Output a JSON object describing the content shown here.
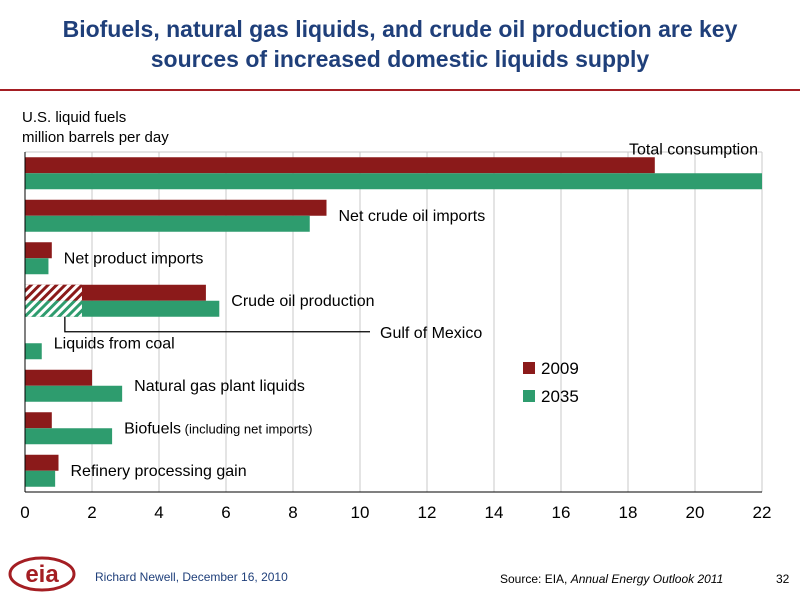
{
  "slide": {
    "title_line1": "Biofuels, natural gas liquids, and crude oil production are key",
    "title_line2": "sources of increased domestic liquids supply",
    "ylabel_line1": "U.S. liquid fuels",
    "ylabel_line2": "million barrels per day",
    "author": "Richard Newell, December 16, 2010",
    "source_prefix": "Source:  EIA, ",
    "source_title": "Annual Energy Outlook 2011",
    "page_number": "32",
    "logo_text": "eia"
  },
  "chart_data": {
    "type": "bar",
    "orientation": "horizontal",
    "categories": [
      {
        "label": "Total consumption",
        "suffix": ""
      },
      {
        "label": "Net crude oil imports",
        "suffix": ""
      },
      {
        "label": "Net product imports",
        "suffix": ""
      },
      {
        "label": "Crude oil production",
        "suffix": ""
      },
      {
        "label": "Liquids from coal",
        "suffix": ""
      },
      {
        "label": "Natural gas plant liquids",
        "suffix": ""
      },
      {
        "label": "Biofuels",
        "suffix": "(including net imports)"
      },
      {
        "label": "Refinery processing gain",
        "suffix": ""
      }
    ],
    "series": [
      {
        "name": "2009",
        "color": "#8b1a1a",
        "values": [
          18.8,
          9.0,
          0.8,
          5.4,
          0.0,
          2.0,
          0.8,
          1.0
        ]
      },
      {
        "name": "2035",
        "color": "#2e9c6e",
        "values": [
          22.0,
          8.5,
          0.7,
          5.8,
          0.5,
          2.9,
          2.6,
          0.9
        ]
      }
    ],
    "subcomponent": {
      "label": "Gulf of Mexico",
      "category_index": 3,
      "values": {
        "2009": 1.7,
        "2035": 1.7
      },
      "pattern": "hatched"
    },
    "xlim": [
      0,
      22
    ],
    "xticks": [
      "0",
      "2",
      "4",
      "6",
      "8",
      "10",
      "12",
      "14",
      "16",
      "18",
      "20",
      "22"
    ],
    "grid": true,
    "legend_position": "right-middle"
  }
}
